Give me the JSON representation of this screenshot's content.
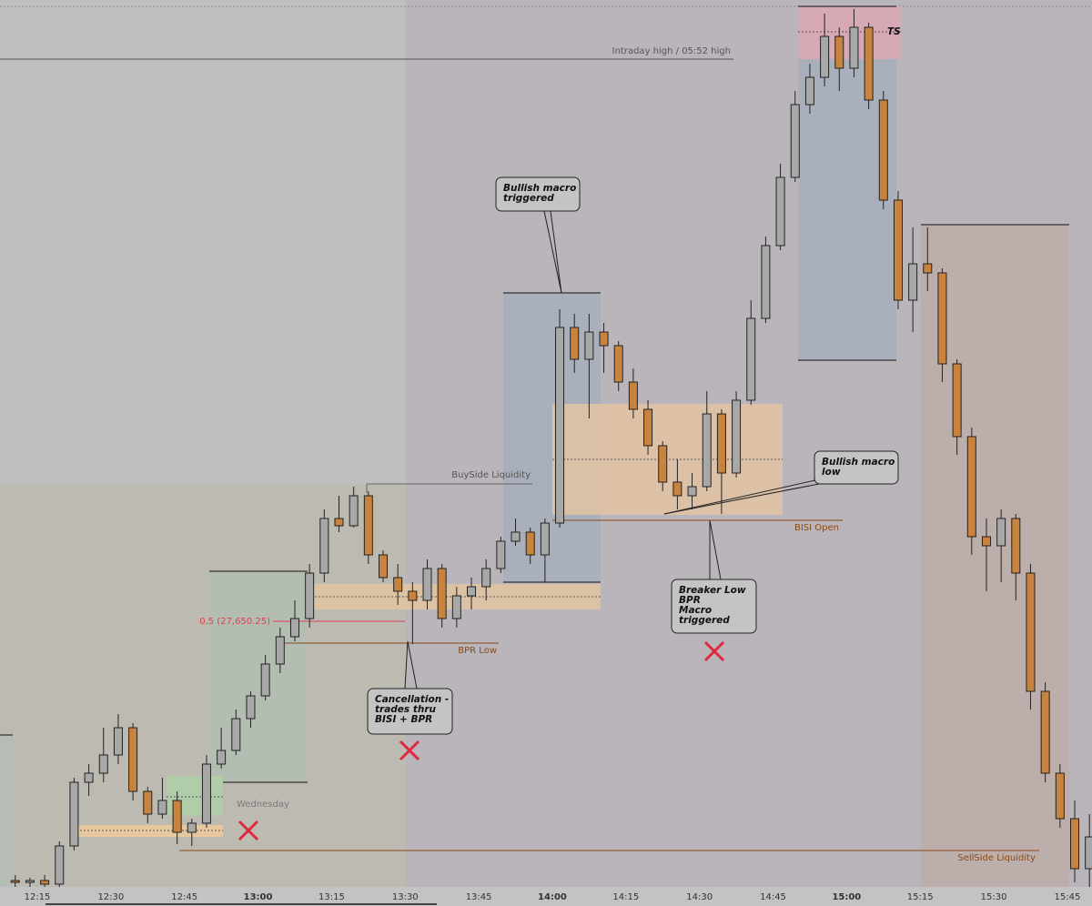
{
  "chart_data": {
    "type": "candlestick",
    "categories": [
      null,
      null,
      "12:15",
      null,
      null,
      null,
      null,
      "12:30",
      null,
      null,
      null,
      null,
      "12:45",
      null,
      null,
      null,
      null,
      "13:00",
      null,
      null,
      null,
      null,
      "13:15",
      null,
      null,
      null,
      null,
      "13:30",
      null,
      null,
      null,
      null,
      "13:45",
      null,
      null,
      null,
      null,
      "14:00",
      null,
      null,
      null,
      null,
      "14:15",
      null,
      null,
      null,
      null,
      "14:30",
      null,
      null,
      null,
      null,
      "14:45",
      null,
      null,
      null,
      null,
      "15:00",
      null,
      null,
      null,
      null,
      "15:15",
      null,
      null,
      null,
      null,
      "15:30",
      null,
      null,
      null,
      null,
      "15:45",
      null
    ],
    "open": [
      27507.75,
      27506.75,
      27507.75,
      27505.75,
      27526.75,
      27561.75,
      27566.75,
      27576.75,
      27591.75,
      27556.75,
      27544.25,
      27551.75,
      27534.25,
      27539.25,
      27571.75,
      27579.25,
      27596.75,
      27609.25,
      27626.75,
      27641.75,
      27651.75,
      27676.75,
      27706.75,
      27702.75,
      27719.25,
      27686.75,
      27674.25,
      27666.75,
      27661.75,
      27679.25,
      27651.75,
      27664.25,
      27669.25,
      27679.25,
      27694.25,
      27699.25,
      27686.75,
      27704.25,
      27811.75,
      27794.25,
      27809.25,
      27801.75,
      27781.75,
      27766.75,
      27746.75,
      27726.75,
      27719.25,
      27724.25,
      27764.25,
      27731.75,
      27771.75,
      27816.75,
      27856.75,
      27894.25,
      27934.25,
      27949.25,
      27971.75,
      27954.25,
      27976.75,
      27936.75,
      27881.75,
      27826.75,
      27846.75,
      27841.75,
      27791.75,
      27751.75,
      27696.75,
      27691.75,
      27706.75,
      27676.75,
      27611.75,
      27566.75,
      27541.75,
      27514.25
    ],
    "high": [
      27510.75,
      27509.25,
      27510.75,
      27529.25,
      27564.25,
      27571.75,
      27591.75,
      27599.25,
      27594.25,
      27559.25,
      27564.25,
      27556.75,
      27541.75,
      27576.75,
      27591.75,
      27601.75,
      27611.75,
      27631.75,
      27646.75,
      27661.75,
      27681.75,
      27711.75,
      27719.25,
      27724.25,
      27721.75,
      27689.25,
      27681.75,
      27671.75,
      27684.25,
      27681.75,
      27669.25,
      27674.25,
      27684.25,
      27696.75,
      27706.75,
      27701.75,
      27706.75,
      27821.75,
      27819.25,
      27819.25,
      27814.25,
      27804.25,
      27789.25,
      27771.75,
      27749.25,
      27739.25,
      27731.75,
      27776.75,
      27766.75,
      27776.75,
      27826.75,
      27861.75,
      27901.75,
      27941.75,
      27956.75,
      27984.25,
      27976.75,
      27986.75,
      27979.25,
      27941.75,
      27886.75,
      27866.75,
      27866.75,
      27844.25,
      27794.25,
      27756.75,
      27706.75,
      27711.75,
      27709.25,
      27681.75,
      27616.75,
      27571.75,
      27551.75,
      27544.25
    ],
    "low": [
      27504.25,
      27504.25,
      27504.25,
      27504.25,
      27524.25,
      27554.25,
      27561.75,
      27571.75,
      27551.75,
      27539.25,
      27541.75,
      27527.75,
      27526.75,
      27536.75,
      27569.25,
      27576.75,
      27591.75,
      27606.75,
      27621.75,
      27639.25,
      27646.75,
      27671.75,
      27699.25,
      27701.75,
      27681.75,
      27671.75,
      27659.25,
      27637.75,
      27656.75,
      27646.75,
      27646.75,
      27656.75,
      27661.75,
      27676.75,
      27691.75,
      27681.75,
      27671.75,
      27701.75,
      27786.75,
      27761.75,
      27786.75,
      27776.75,
      27761.75,
      27741.75,
      27721.75,
      27711.75,
      27711.75,
      27721.75,
      27709.25,
      27729.25,
      27769.25,
      27814.25,
      27854.25,
      27891.75,
      27929.25,
      27944.25,
      27941.75,
      27949.25,
      27931.75,
      27876.75,
      27821.75,
      27809.25,
      27831.75,
      27781.75,
      27741.75,
      27686.75,
      27666.75,
      27671.75,
      27661.75,
      27601.75,
      27561.75,
      27536.75,
      27506.75,
      27504.25
    ],
    "close": [
      27506.75,
      27507.75,
      27505.75,
      27526.75,
      27561.75,
      27566.75,
      27576.75,
      27591.75,
      27556.75,
      27544.25,
      27551.75,
      27534.25,
      27539.25,
      27571.75,
      27579.25,
      27596.75,
      27609.25,
      27626.75,
      27641.75,
      27651.75,
      27676.75,
      27706.75,
      27702.75,
      27719.25,
      27686.75,
      27674.25,
      27666.75,
      27661.75,
      27679.25,
      27651.75,
      27664.25,
      27669.25,
      27679.25,
      27694.25,
      27699.25,
      27686.75,
      27704.25,
      27811.75,
      27794.25,
      27809.25,
      27801.75,
      27781.75,
      27766.75,
      27746.75,
      27726.75,
      27719.25,
      27724.25,
      27764.25,
      27731.75,
      27771.75,
      27816.75,
      27856.75,
      27894.25,
      27934.25,
      27949.25,
      27971.75,
      27954.25,
      27976.75,
      27936.75,
      27881.75,
      27826.75,
      27846.75,
      27841.75,
      27791.75,
      27751.75,
      27696.75,
      27691.75,
      27706.75,
      27676.75,
      27611.75,
      27566.75,
      27541.75,
      27514.25,
      27531.75
    ],
    "up_color": "#a8a8a8",
    "down_color": "#c8843e",
    "ylim": [
      27504.25,
      27991.75
    ],
    "levels": [
      {
        "label": "Intraday high / 05:52 high",
        "value": 27959.25
      },
      {
        "label": "BuySide Liquidity",
        "value": 27725.75
      },
      {
        "label": "BISI Open",
        "value": 27705.75
      },
      {
        "label": "BPR Low",
        "value": 27638.25
      },
      {
        "label": "SellSide Liquidity",
        "value": 27524.25
      },
      {
        "label": "0.5 (27,650.25)",
        "value": 27650.25
      }
    ],
    "annotations": [
      {
        "lines": [
          "Bullish macro",
          "triggered"
        ]
      },
      {
        "lines": [
          "Bullish macro",
          "low"
        ]
      },
      {
        "lines": [
          "Breaker Low",
          "BPR",
          "Macro",
          "triggered"
        ]
      },
      {
        "lines": [
          "Cancellation -",
          "trades thru",
          "BISI + BPR"
        ]
      }
    ],
    "zone_label": "TS",
    "day_label": "Wednesday"
  }
}
